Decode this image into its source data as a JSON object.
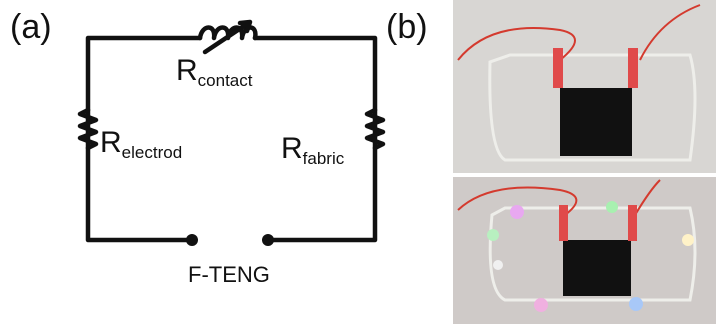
{
  "panels": {
    "a": {
      "label": "(a)",
      "resistors": [
        {
          "main": "R",
          "sub": "contact"
        },
        {
          "main": "R",
          "sub": "electrod"
        },
        {
          "main": "R",
          "sub": "fabric"
        }
      ],
      "source": "F-TENG"
    },
    "b": {
      "label": "(b)"
    }
  }
}
